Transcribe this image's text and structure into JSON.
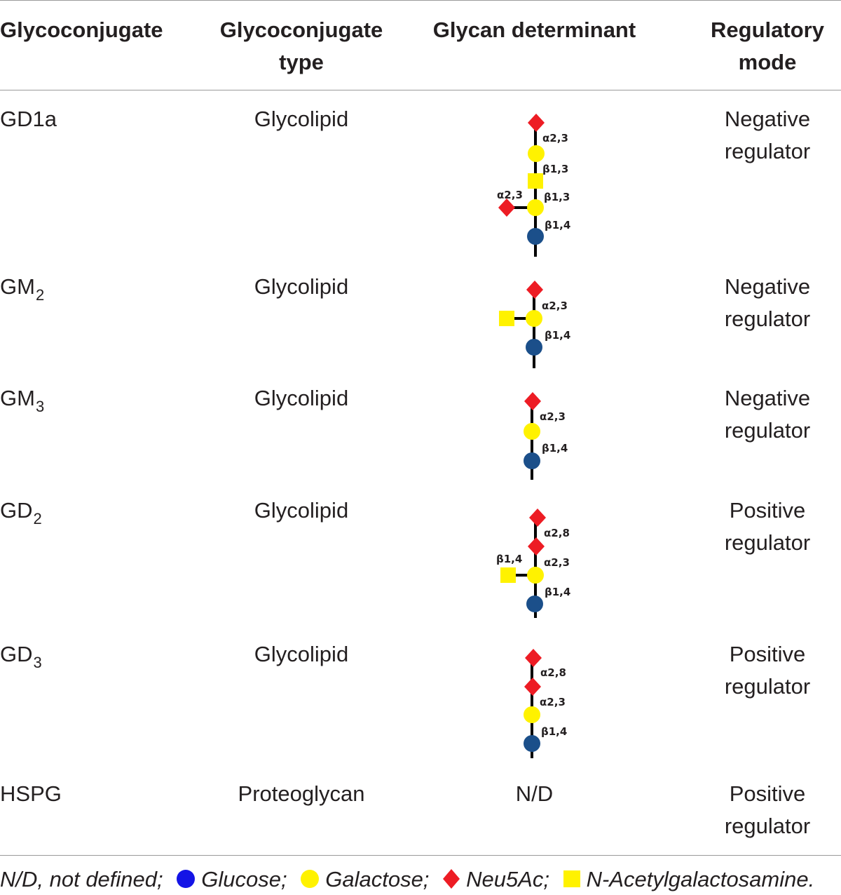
{
  "table": {
    "headers": {
      "glycoconjugate": "Glycoconjugate",
      "type_line1": "Glycoconjugate",
      "type_line2": "type",
      "determinant": "Glycan determinant",
      "mode_line1": "Regulatory",
      "mode_line2": "mode"
    },
    "rows": [
      {
        "name": "GD1a",
        "name_sub": "",
        "type": "Glycolipid",
        "determinant_na": "",
        "mode_line1": "Negative",
        "mode_line2": "regulator",
        "linkages": [
          "α2,3",
          "β1,3",
          "β1,3",
          "β1,4"
        ],
        "branch_linkage": "α2,3"
      },
      {
        "name": "GM",
        "name_sub": "2",
        "type": "Glycolipid",
        "determinant_na": "",
        "mode_line1": "Negative",
        "mode_line2": "regulator",
        "linkages": [
          "α2,3",
          "β1,4"
        ],
        "branch_linkage": ""
      },
      {
        "name": "GM",
        "name_sub": "3",
        "type": "Glycolipid",
        "determinant_na": "",
        "mode_line1": "Negative",
        "mode_line2": "regulator",
        "linkages": [
          "α2,3",
          "β1,4"
        ],
        "branch_linkage": ""
      },
      {
        "name": "GD",
        "name_sub": "2",
        "type": "Glycolipid",
        "determinant_na": "",
        "mode_line1": "Positive",
        "mode_line2": "regulator",
        "linkages": [
          "α2,8",
          "α2,3",
          "β1,4"
        ],
        "branch_linkage": "β1,4"
      },
      {
        "name": "GD",
        "name_sub": "3",
        "type": "Glycolipid",
        "determinant_na": "",
        "mode_line1": "Positive",
        "mode_line2": "regulator",
        "linkages": [
          "α2,8",
          "α2,3",
          "β1,4"
        ],
        "branch_linkage": ""
      },
      {
        "name": "HSPG",
        "name_sub": "",
        "type": "Proteoglycan",
        "determinant_na": "N/D",
        "mode_line1": "Positive",
        "mode_line2": "regulator",
        "linkages": [],
        "branch_linkage": ""
      }
    ]
  },
  "footnote": {
    "abbrev": "N/D, not defined;",
    "glucose": "Glucose;",
    "galactose": "Galactose;",
    "neu5ac": "Neu5Ac;",
    "galnac": "N-Acetylgalactosamine."
  },
  "colors": {
    "glucose_in_structure": "#1b4f8a",
    "glucose_in_legend": "#1414e6",
    "galactose": "#fff200",
    "neu5ac": "#ed1c24",
    "galnac": "#fff200",
    "text": "#231f20",
    "rule": "#9a9a9a"
  }
}
